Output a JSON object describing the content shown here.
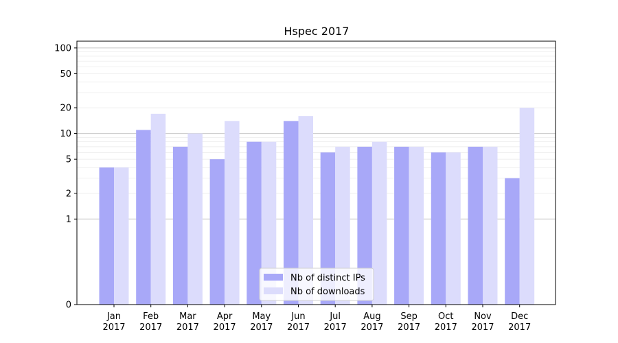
{
  "chart_data": {
    "type": "bar",
    "title": "Hspec 2017",
    "xlabel": "",
    "ylabel": "",
    "yscale": "symlog",
    "ylim": [
      0,
      120
    ],
    "yticks": [
      0,
      1,
      2,
      5,
      10,
      20,
      50,
      100
    ],
    "grid": "y-major-and-minor",
    "legend_position": "bottom-center",
    "categories": [
      "Jan\n2017",
      "Feb\n2017",
      "Mar\n2017",
      "Apr\n2017",
      "May\n2017",
      "Jun\n2017",
      "Jul\n2017",
      "Aug\n2017",
      "Sep\n2017",
      "Oct\n2017",
      "Nov\n2017",
      "Dec\n2017"
    ],
    "series": [
      {
        "name": "Nb of distinct IPs",
        "color": "#a8a8f8",
        "values": [
          4,
          11,
          7,
          5,
          8,
          14,
          6,
          7,
          7,
          6,
          7,
          3
        ]
      },
      {
        "name": "Nb of downloads",
        "color": "#dcdcfc",
        "values": [
          4,
          17,
          10,
          14,
          8,
          16,
          7,
          8,
          7,
          6,
          7,
          20
        ]
      }
    ]
  }
}
